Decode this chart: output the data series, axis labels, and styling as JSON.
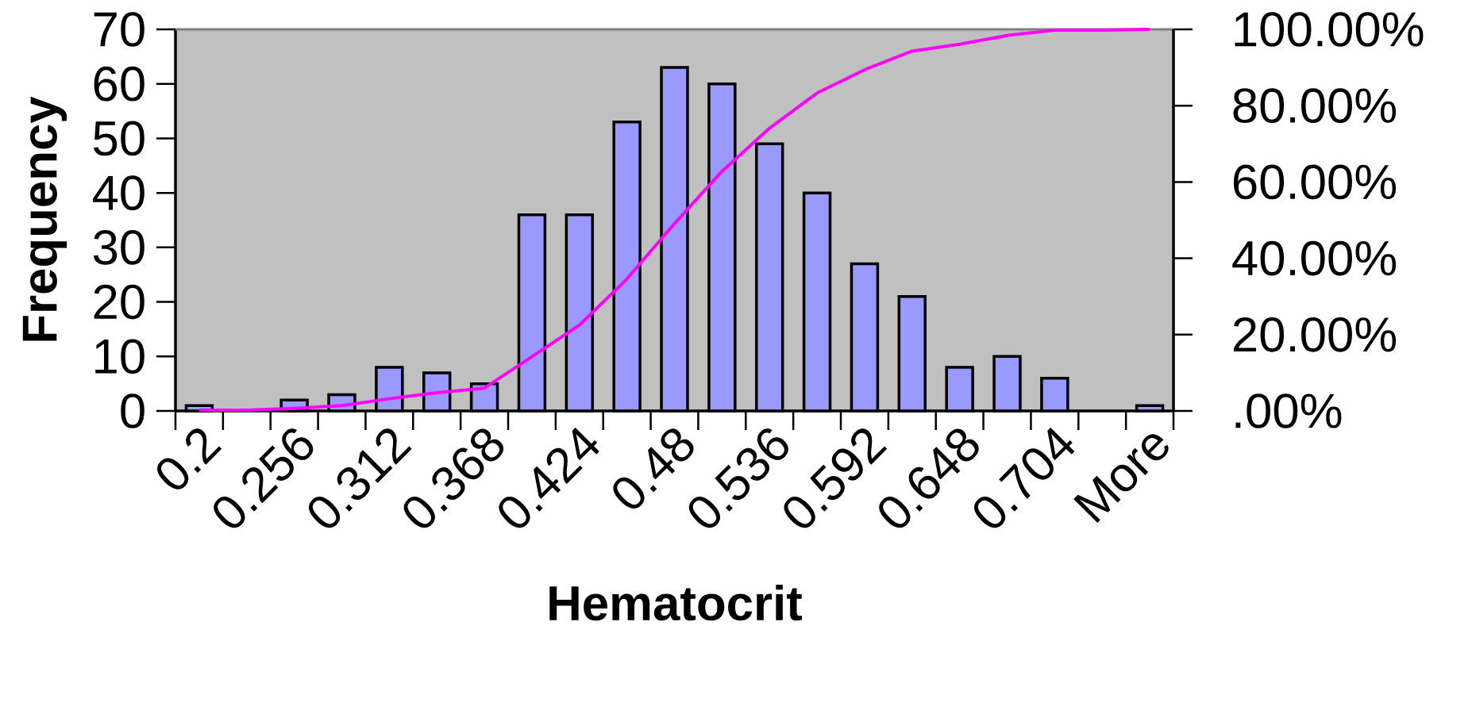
{
  "chart_data": {
    "type": "bar",
    "xlabel": "Hematocrit",
    "ylabel": "Frequency",
    "categories": [
      "0.2",
      null,
      "0.256",
      null,
      "0.312",
      null,
      "0.368",
      null,
      "0.424",
      null,
      "0.48",
      null,
      "0.536",
      null,
      "0.592",
      null,
      "0.648",
      null,
      "0.704",
      null,
      "More"
    ],
    "series": [
      {
        "color": "#9999ff",
        "values": [
          1,
          0,
          2,
          3,
          8,
          7,
          5,
          36,
          36,
          53,
          63,
          60,
          49,
          40,
          27,
          21,
          8,
          10,
          6,
          0,
          1
        ]
      },
      {
        "type": "line",
        "axis": "y2",
        "color": "#ff00ff",
        "values": [
          0.2,
          0.2,
          0.7,
          1.4,
          3.2,
          4.8,
          6.0,
          14.2,
          22.5,
          34.6,
          49.1,
          62.8,
          74.1,
          83.3,
          89.4,
          94.3,
          96.1,
          98.4,
          99.8,
          99.8,
          100
        ]
      }
    ],
    "ylim": [
      0,
      70
    ],
    "yticks": [
      0,
      10,
      20,
      30,
      40,
      50,
      60,
      70
    ],
    "y2lim": [
      0,
      100
    ],
    "y2ticks": [
      {
        "value": 0,
        "label": ".00%"
      },
      {
        "value": 20,
        "label": "20.00%"
      },
      {
        "value": 40,
        "label": "40.00%"
      },
      {
        "value": 60,
        "label": "60.00%"
      },
      {
        "value": 80,
        "label": "80.00%"
      },
      {
        "value": 100,
        "label": "100.00%"
      }
    ],
    "grid": false,
    "legend": false
  }
}
